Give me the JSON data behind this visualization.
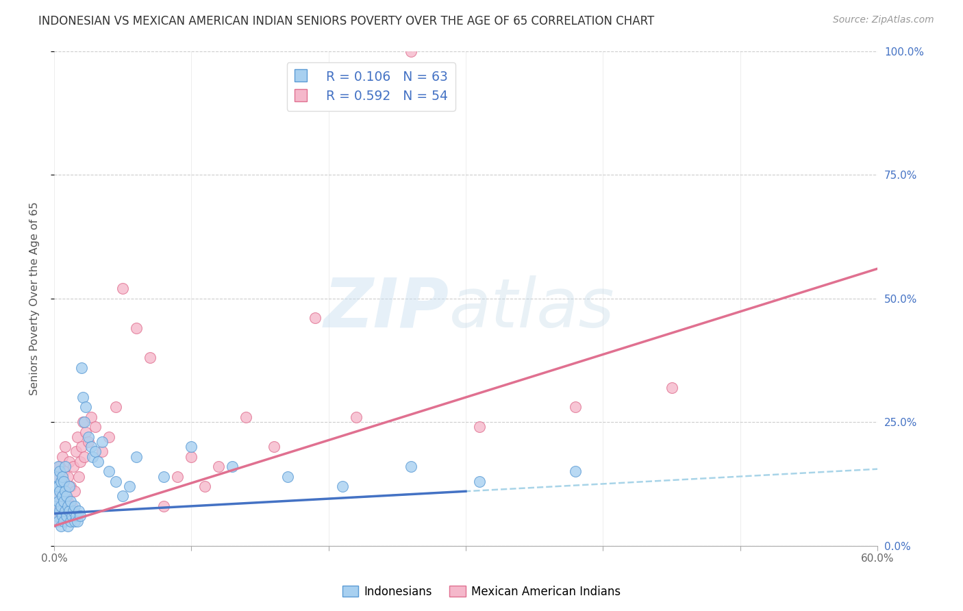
{
  "title": "INDONESIAN VS MEXICAN AMERICAN INDIAN SENIORS POVERTY OVER THE AGE OF 65 CORRELATION CHART",
  "source": "Source: ZipAtlas.com",
  "ylabel": "Seniors Poverty Over the Age of 65",
  "xlim": [
    0.0,
    0.6
  ],
  "ylim": [
    0.0,
    1.0
  ],
  "xtick_vals": [
    0.0,
    0.1,
    0.2,
    0.3,
    0.4,
    0.5,
    0.6
  ],
  "xtick_labels_show": [
    "0.0%",
    "",
    "",
    "",
    "",
    "",
    "60.0%"
  ],
  "ytick_vals": [
    0.0,
    0.25,
    0.5,
    0.75,
    1.0
  ],
  "ytick_labels_right": [
    "0.0%",
    "25.0%",
    "50.0%",
    "75.0%",
    "100.0%"
  ],
  "indonesian_color": "#a8d0f0",
  "mexican_color": "#f5b8cb",
  "indonesian_edge": "#5b9bd5",
  "mexican_edge": "#e07090",
  "trend_indonesian_color": "#4472c4",
  "trend_mexican_color": "#e07090",
  "trend_dashed_color": "#a8d4e8",
  "R_indonesian": 0.106,
  "N_indonesian": 63,
  "R_mexican": 0.592,
  "N_mexican": 54,
  "legend_label_indonesian": "Indonesians",
  "legend_label_mexican": "Mexican American Indians",
  "watermark_zip": "ZIP",
  "watermark_atlas": "atlas",
  "indonesian_x": [
    0.001,
    0.001,
    0.002,
    0.002,
    0.002,
    0.003,
    0.003,
    0.003,
    0.003,
    0.004,
    0.004,
    0.004,
    0.005,
    0.005,
    0.005,
    0.006,
    0.006,
    0.006,
    0.007,
    0.007,
    0.007,
    0.008,
    0.008,
    0.008,
    0.009,
    0.009,
    0.01,
    0.01,
    0.011,
    0.011,
    0.012,
    0.012,
    0.013,
    0.014,
    0.015,
    0.015,
    0.016,
    0.017,
    0.018,
    0.019,
    0.02,
    0.021,
    0.022,
    0.023,
    0.025,
    0.027,
    0.028,
    0.03,
    0.032,
    0.035,
    0.04,
    0.045,
    0.05,
    0.055,
    0.06,
    0.08,
    0.1,
    0.13,
    0.17,
    0.21,
    0.26,
    0.31,
    0.38
  ],
  "indonesian_y": [
    0.08,
    0.12,
    0.06,
    0.1,
    0.14,
    0.05,
    0.09,
    0.12,
    0.16,
    0.07,
    0.11,
    0.15,
    0.04,
    0.08,
    0.13,
    0.06,
    0.1,
    0.14,
    0.05,
    0.09,
    0.13,
    0.07,
    0.11,
    0.16,
    0.06,
    0.1,
    0.04,
    0.08,
    0.07,
    0.12,
    0.05,
    0.09,
    0.06,
    0.07,
    0.05,
    0.08,
    0.06,
    0.05,
    0.07,
    0.06,
    0.36,
    0.3,
    0.25,
    0.28,
    0.22,
    0.2,
    0.18,
    0.19,
    0.17,
    0.21,
    0.15,
    0.13,
    0.1,
    0.12,
    0.18,
    0.14,
    0.2,
    0.16,
    0.14,
    0.12,
    0.16,
    0.13,
    0.15
  ],
  "mexican_x": [
    0.001,
    0.001,
    0.002,
    0.002,
    0.003,
    0.003,
    0.004,
    0.004,
    0.005,
    0.005,
    0.006,
    0.006,
    0.007,
    0.007,
    0.008,
    0.008,
    0.009,
    0.01,
    0.01,
    0.011,
    0.012,
    0.013,
    0.014,
    0.015,
    0.016,
    0.017,
    0.018,
    0.019,
    0.02,
    0.021,
    0.022,
    0.023,
    0.025,
    0.027,
    0.03,
    0.035,
    0.04,
    0.045,
    0.05,
    0.06,
    0.07,
    0.08,
    0.09,
    0.1,
    0.11,
    0.12,
    0.14,
    0.16,
    0.19,
    0.22,
    0.26,
    0.31,
    0.38,
    0.45
  ],
  "mexican_y": [
    0.05,
    0.1,
    0.08,
    0.14,
    0.07,
    0.12,
    0.09,
    0.16,
    0.06,
    0.11,
    0.13,
    0.18,
    0.08,
    0.15,
    0.1,
    0.2,
    0.07,
    0.09,
    0.14,
    0.17,
    0.12,
    0.08,
    0.16,
    0.11,
    0.19,
    0.22,
    0.14,
    0.17,
    0.2,
    0.25,
    0.18,
    0.23,
    0.21,
    0.26,
    0.24,
    0.19,
    0.22,
    0.28,
    0.52,
    0.44,
    0.38,
    0.08,
    0.14,
    0.18,
    0.12,
    0.16,
    0.26,
    0.2,
    0.46,
    0.26,
    1.0,
    0.24,
    0.28,
    0.32
  ],
  "trend_indo_x0": 0.0,
  "trend_indo_y0": 0.065,
  "trend_indo_x1": 0.6,
  "trend_indo_y1": 0.155,
  "trend_mex_x0": 0.0,
  "trend_mex_y0": 0.04,
  "trend_mex_x1": 0.6,
  "trend_mex_y1": 0.56,
  "trend_indo_solid_end": 0.3,
  "trend_indo_dashed_start": 0.2
}
